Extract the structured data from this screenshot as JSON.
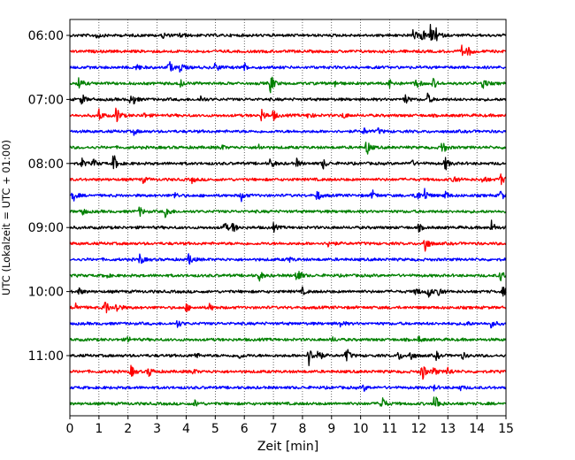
{
  "chart_data": {
    "type": "line",
    "title": "",
    "xlabel": "Zeit  [min]",
    "ylabel": "UTC (Lokalzeit = UTC + 01:00)",
    "xlim": [
      0,
      15
    ],
    "x_ticks": [
      "0",
      "1",
      "2",
      "3",
      "4",
      "5",
      "6",
      "7",
      "8",
      "9",
      "10",
      "11",
      "12",
      "13",
      "14",
      "15"
    ],
    "y_ticks": [
      "06:00",
      "07:00",
      "08:00",
      "09:00",
      "10:00",
      "11:00"
    ],
    "row_minutes": 15,
    "grid": "vertical dotted",
    "trace_colors": [
      "#000000",
      "#ff0000",
      "#0000ff",
      "#008000"
    ],
    "traces": [
      {
        "time": "06:00",
        "color": "#000000",
        "events": [
          [
            0.9,
            0.35
          ],
          [
            3.2,
            0.3
          ],
          [
            3.8,
            0.3
          ],
          [
            11.8,
            0.5
          ],
          [
            12.1,
            0.7
          ],
          [
            12.4,
            1.0
          ],
          [
            12.6,
            0.5
          ]
        ]
      },
      {
        "time": "06:15",
        "color": "#ff0000",
        "events": [
          [
            13.5,
            0.7
          ],
          [
            13.7,
            0.35
          ]
        ]
      },
      {
        "time": "06:30",
        "color": "#0000ff",
        "events": [
          [
            2.3,
            0.3
          ],
          [
            3.4,
            0.65
          ],
          [
            3.8,
            0.5
          ],
          [
            5.0,
            0.5
          ],
          [
            6.0,
            0.35
          ]
        ]
      },
      {
        "time": "06:45",
        "color": "#008000",
        "events": [
          [
            0.3,
            0.6
          ],
          [
            3.8,
            0.3
          ],
          [
            6.9,
            1.0
          ],
          [
            9.1,
            0.3
          ],
          [
            11.0,
            0.6
          ],
          [
            11.9,
            0.6
          ],
          [
            12.5,
            0.45
          ],
          [
            14.2,
            0.6
          ]
        ]
      },
      {
        "time": "07:00",
        "color": "#000000",
        "events": [
          [
            0.4,
            0.55
          ],
          [
            2.1,
            1.0
          ],
          [
            4.5,
            0.3
          ],
          [
            11.5,
            0.55
          ],
          [
            12.3,
            0.5
          ]
        ]
      },
      {
        "time": "07:15",
        "color": "#ff0000",
        "events": [
          [
            1.0,
            0.6
          ],
          [
            1.6,
            0.9
          ],
          [
            2.5,
            0.3
          ],
          [
            6.6,
            0.6
          ],
          [
            7.0,
            0.45
          ],
          [
            8.2,
            0.35
          ],
          [
            9.4,
            0.3
          ]
        ]
      },
      {
        "time": "07:30",
        "color": "#0000ff",
        "events": [
          [
            2.2,
            0.25
          ],
          [
            10.1,
            0.3
          ],
          [
            10.6,
            0.25
          ]
        ]
      },
      {
        "time": "07:45",
        "color": "#008000",
        "events": [
          [
            5.2,
            0.25
          ],
          [
            6.5,
            0.25
          ],
          [
            10.2,
            0.8
          ],
          [
            12.8,
            0.75
          ]
        ]
      },
      {
        "time": "08:00",
        "color": "#000000",
        "events": [
          [
            0.4,
            0.45
          ],
          [
            0.8,
            0.4
          ],
          [
            1.5,
            0.9
          ],
          [
            6.9,
            0.55
          ],
          [
            7.8,
            0.35
          ],
          [
            8.7,
            0.5
          ],
          [
            11.7,
            0.5
          ],
          [
            12.9,
            0.7
          ]
        ]
      },
      {
        "time": "08:15",
        "color": "#ff0000",
        "events": [
          [
            2.5,
            0.3
          ],
          [
            4.2,
            0.25
          ],
          [
            13.2,
            0.5
          ],
          [
            14.2,
            0.4
          ],
          [
            14.8,
            0.55
          ]
        ]
      },
      {
        "time": "08:30",
        "color": "#0000ff",
        "events": [
          [
            0.1,
            0.6
          ],
          [
            3.6,
            0.3
          ],
          [
            5.9,
            0.45
          ],
          [
            8.5,
            0.5
          ],
          [
            10.4,
            0.5
          ],
          [
            11.9,
            0.7
          ],
          [
            12.2,
            0.6
          ],
          [
            12.9,
            0.45
          ],
          [
            14.8,
            0.5
          ]
        ]
      },
      {
        "time": "08:45",
        "color": "#008000",
        "events": [
          [
            0.4,
            0.45
          ],
          [
            2.4,
            0.45
          ],
          [
            3.3,
            0.7
          ]
        ]
      },
      {
        "time": "09:00",
        "color": "#000000",
        "events": [
          [
            5.3,
            0.55
          ],
          [
            5.6,
            0.45
          ],
          [
            7.0,
            0.35
          ],
          [
            12.0,
            0.3
          ],
          [
            14.5,
            0.6
          ]
        ]
      },
      {
        "time": "09:15",
        "color": "#ff0000",
        "events": [
          [
            8.9,
            0.5
          ],
          [
            12.2,
            1.0
          ]
        ]
      },
      {
        "time": "09:30",
        "color": "#0000ff",
        "events": [
          [
            2.4,
            0.55
          ],
          [
            4.1,
            0.65
          ],
          [
            7.5,
            0.3
          ]
        ]
      },
      {
        "time": "09:45",
        "color": "#008000",
        "events": [
          [
            1.2,
            0.3
          ],
          [
            6.5,
            0.55
          ],
          [
            7.8,
            1.0
          ],
          [
            14.8,
            0.55
          ]
        ]
      },
      {
        "time": "10:00",
        "color": "#000000",
        "events": [
          [
            0.3,
            0.35
          ],
          [
            8.0,
            0.3
          ],
          [
            11.9,
            0.45
          ],
          [
            12.3,
            0.75
          ],
          [
            12.7,
            0.55
          ],
          [
            14.9,
            0.4
          ]
        ]
      },
      {
        "time": "10:15",
        "color": "#ff0000",
        "events": [
          [
            0.2,
            0.45
          ],
          [
            1.2,
            0.85
          ],
          [
            1.6,
            0.6
          ],
          [
            4.0,
            0.35
          ],
          [
            4.8,
            0.3
          ]
        ]
      },
      {
        "time": "10:30",
        "color": "#0000ff",
        "events": [
          [
            3.7,
            0.35
          ],
          [
            9.3,
            0.3
          ],
          [
            13.6,
            0.3
          ],
          [
            14.5,
            0.45
          ]
        ]
      },
      {
        "time": "10:45",
        "color": "#008000",
        "events": [
          [
            2.0,
            0.25
          ],
          [
            9.0,
            0.25
          ],
          [
            12.0,
            0.25
          ]
        ]
      },
      {
        "time": "11:00",
        "color": "#000000",
        "events": [
          [
            4.3,
            0.3
          ],
          [
            5.8,
            0.3
          ],
          [
            8.2,
            1.0
          ],
          [
            8.5,
            0.9
          ],
          [
            9.5,
            0.8
          ],
          [
            11.3,
            0.45
          ],
          [
            11.7,
            0.55
          ],
          [
            12.6,
            0.35
          ],
          [
            13.5,
            0.3
          ]
        ]
      },
      {
        "time": "11:15",
        "color": "#ff0000",
        "events": [
          [
            2.1,
            0.55
          ],
          [
            2.7,
            0.55
          ],
          [
            4.2,
            0.3
          ],
          [
            12.1,
            1.0
          ],
          [
            12.5,
            0.45
          ],
          [
            13.0,
            0.45
          ]
        ]
      },
      {
        "time": "11:30",
        "color": "#0000ff",
        "events": [
          [
            10.1,
            0.3
          ],
          [
            12.5,
            0.25
          ],
          [
            13.4,
            0.25
          ]
        ]
      },
      {
        "time": "11:45",
        "color": "#008000",
        "events": [
          [
            4.3,
            0.3
          ],
          [
            10.7,
            1.0
          ],
          [
            12.5,
            0.6
          ],
          [
            12.6,
            0.5
          ]
        ]
      }
    ]
  }
}
